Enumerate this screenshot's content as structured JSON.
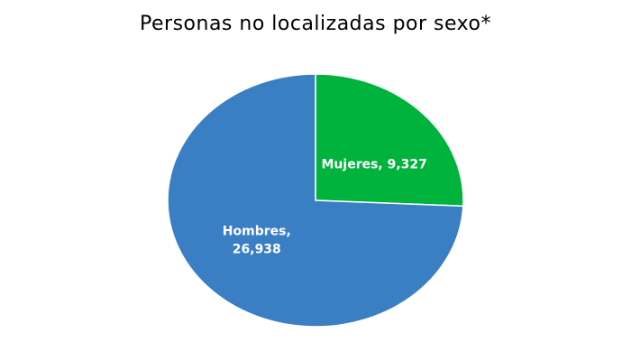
{
  "chart_data": {
    "type": "pie",
    "title": "Personas no localizadas por sexo*",
    "slices": [
      {
        "label": "Mujeres",
        "value": 9327,
        "label_lines": [
          "Mujeres, 9,327"
        ],
        "color": "#00b33c"
      },
      {
        "label": "Hombres",
        "value": 26938,
        "label_lines": [
          "Hombres,",
          "26,938"
        ],
        "color": "#3a7fc4"
      }
    ],
    "start_angle_deg": 0,
    "legend": "none"
  }
}
